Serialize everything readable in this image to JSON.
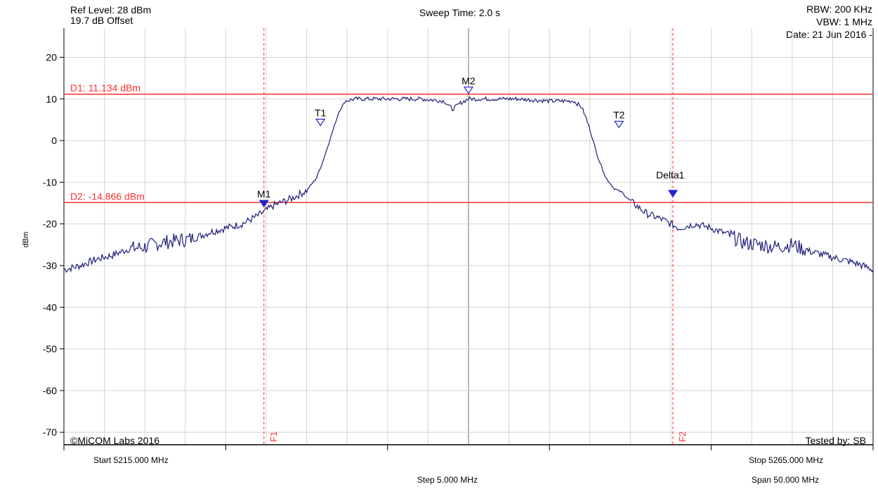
{
  "header": {
    "ref_level": "Ref Level: 28 dBm",
    "offset": "19.7 dB Offset",
    "sweep_time": "Sweep Time: 2.0 s",
    "rbw": "RBW: 200 KHz",
    "vbw": "VBW: 1 MHz",
    "date": "Date: 21 Jun 2016 -"
  },
  "footer": {
    "start": "Start 5215.000 MHz",
    "step": "Step 5.000 MHz",
    "stop": "Stop 5265.000 MHz",
    "span": "Span 50.000 MHz"
  },
  "colors": {
    "trace": "#1e1e7a",
    "reference": "#ff3030",
    "marker": "#2222cc",
    "grid": "#d4d4d4",
    "center_line": "#a0a0a0"
  },
  "chart_data": {
    "type": "line",
    "title": "",
    "xlabel": "",
    "ylabel": "dBm",
    "xlim": [
      5215.0,
      5265.0
    ],
    "ylim": [
      -73,
      27
    ],
    "grid": true,
    "yticks": [
      20,
      10,
      0,
      -10,
      -20,
      -30,
      -40,
      -50,
      -60,
      -70
    ],
    "x_grid_step": 2.5,
    "x_major_ticks": [
      5215,
      5225,
      5235,
      5245,
      5255,
      5265
    ],
    "center_x": 5240.0,
    "series": [
      {
        "x": [
          5215.0,
          5216.0,
          5217.0,
          5218.0,
          5219.0,
          5220.0,
          5221.0,
          5222.0,
          5223.0,
          5224.0,
          5225.0,
          5226.0,
          5227.0,
          5228.0,
          5229.0,
          5230.0,
          5230.6,
          5231.0,
          5231.5,
          5232.0,
          5232.4,
          5233.0,
          5235.0,
          5237.0,
          5238.5,
          5239.0,
          5239.5,
          5240.0,
          5241.0,
          5243.0,
          5245.0,
          5246.5,
          5247.0,
          5247.4,
          5248.0,
          5248.5,
          5249.0,
          5249.5,
          5250.0,
          5251.0,
          5252.0,
          5253.0,
          5254.0,
          5255.0,
          5256.0,
          5257.0,
          5258.0,
          5259.0,
          5260.0,
          5261.0,
          5262.0,
          5263.0,
          5264.0,
          5265.0
        ],
        "y": [
          -31.0,
          -30.0,
          -28.5,
          -27.5,
          -26.0,
          -25.5,
          -24.5,
          -24.0,
          -23.5,
          -22.0,
          -21.0,
          -20.0,
          -18.0,
          -15.5,
          -14.0,
          -12.0,
          -9.0,
          -5.0,
          1.0,
          7.0,
          9.5,
          10.0,
          10.0,
          10.0,
          9.5,
          7.5,
          9.0,
          10.0,
          10.0,
          10.0,
          9.5,
          9.5,
          8.0,
          4.0,
          -4.0,
          -9.0,
          -11.5,
          -12.5,
          -14.5,
          -17.5,
          -19.0,
          -21.0,
          -20.0,
          -21.0,
          -22.5,
          -24.5,
          -25.0,
          -25.5,
          -25.0,
          -26.5,
          -27.5,
          -28.5,
          -29.5,
          -31.0
        ]
      }
    ],
    "reference_lines": [
      {
        "label": "D1: 11.134 dBm",
        "y": 11.134
      },
      {
        "label": "D2: -14.866 dBm",
        "y": -14.866
      }
    ],
    "frequency_lines": [
      {
        "label": "F1",
        "x": 5227.36
      },
      {
        "label": "F2",
        "x": 5252.63
      }
    ],
    "markers": [
      {
        "label": "M1",
        "x": 5227.36,
        "y": -15.2,
        "filled": true
      },
      {
        "label": "T1",
        "x": 5230.85,
        "y": 4.3,
        "filled": false
      },
      {
        "label": "M2",
        "x": 5240.0,
        "y": 12.0,
        "filled": false
      },
      {
        "label": "T2",
        "x": 5249.3,
        "y": 3.8,
        "filled": false
      },
      {
        "label": "Delta1",
        "x": 5252.63,
        "y": -12.8,
        "filled": true
      }
    ],
    "annotations": {
      "copyright": "©MiCOM Labs 2016",
      "tested_by": "Tested by: SB"
    }
  }
}
